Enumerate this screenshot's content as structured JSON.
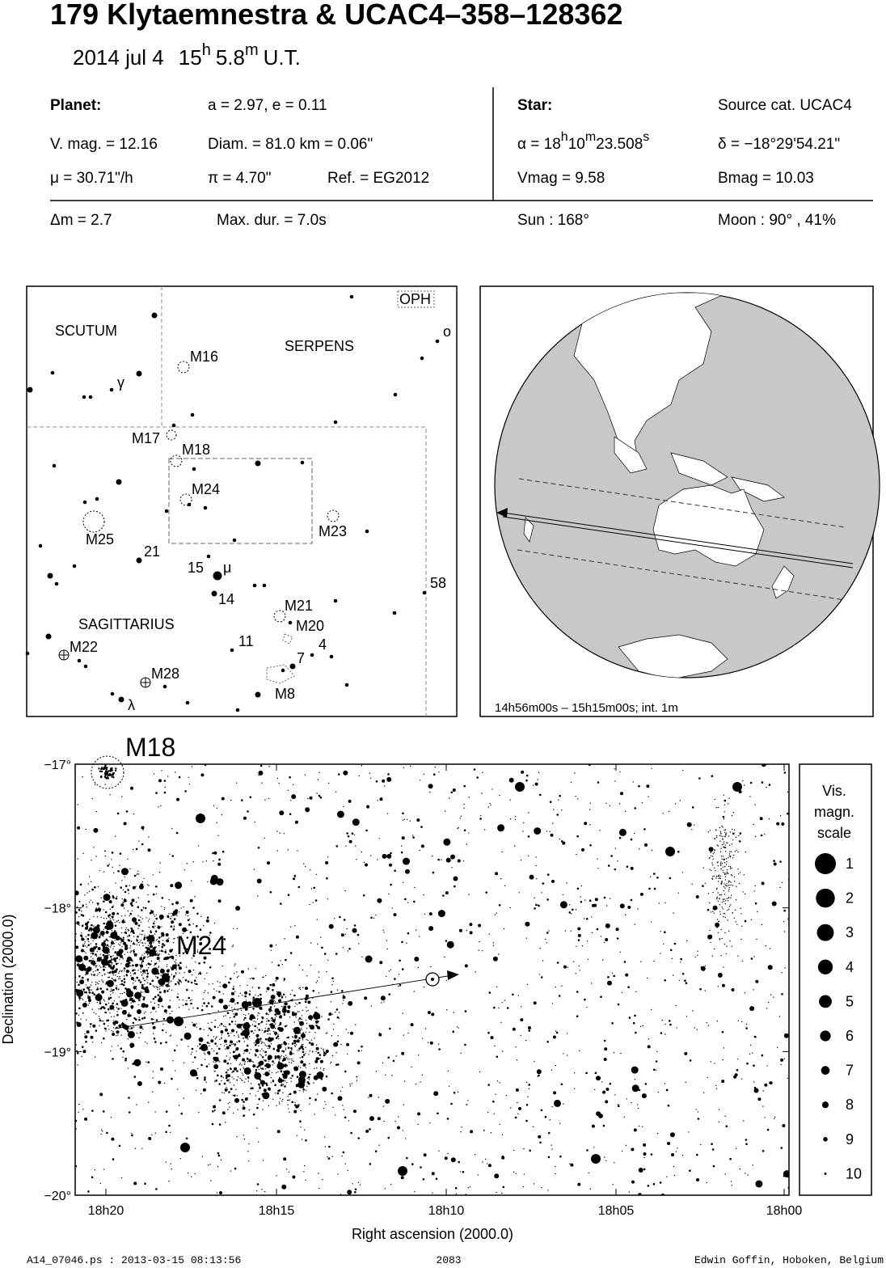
{
  "header": {
    "title": "179 Klytaemnestra  &  UCAC4–358–128362",
    "date": "2014 jul  4",
    "hour": "15",
    "hour_unit": "h",
    "minute": "5.8",
    "minute_unit": "m",
    "time_scale": "U.T."
  },
  "info": {
    "planet_label": "Planet:",
    "orbit": "a = 2.97, e = 0.11",
    "vmag": "V. mag. = 12.16",
    "diam": "Diam. = 81.0 km = 0.06\"",
    "mu": "μ =  30.71\"/h",
    "parallax": "π =  4.70\"",
    "ref": "Ref. = EG2012",
    "star_label": "Star:",
    "source": "Source cat.  UCAC4",
    "ra": {
      "prefix": "α = 18",
      "h": "h",
      "min": "10",
      "m": "m",
      "sec": "23.508",
      "s": "s"
    },
    "dec": "δ = −18°29'54.21\"",
    "star_vmag": "Vmag =  9.58",
    "bmag": "Bmag = 10.03",
    "delta_m": "Δm = 2.7",
    "max_dur": "Max. dur. = 7.0s",
    "sun": "Sun : 168°",
    "moon": "Moon :  90° , 41%"
  },
  "finder": {
    "labels": [
      "SCUTUM",
      "SERPENS",
      "OPH",
      "ο",
      "M16",
      "γ",
      "M17",
      "M18",
      "M24",
      "M23",
      "M25",
      "21",
      "15",
      "μ",
      "14",
      "58",
      "M21",
      "M20",
      "SAGITTARIUS",
      "M22",
      "11",
      "4",
      "7",
      "M28",
      "M8",
      "λ"
    ]
  },
  "globe": {
    "caption": "14h56m00s – 15h15m00s; int.  1m"
  },
  "field": {
    "labels": [
      "M18",
      "M24"
    ],
    "x_ticks": [
      "18h20",
      "18h15",
      "18h10",
      "18h05",
      "18h00"
    ],
    "y_ticks": [
      "−17°",
      "−18°",
      "−19°",
      "−20°"
    ],
    "x_label": "Right ascension (2000.0)",
    "y_label": "Declination (2000.0)",
    "legend": {
      "title": [
        "Vis.",
        "magn.",
        "scale"
      ],
      "magnitudes": [
        "1",
        "2",
        "3",
        "4",
        "5",
        "6",
        "7",
        "8",
        "9",
        "10"
      ]
    }
  },
  "footer": {
    "file": "A14_07046.ps : 2013-03-15 08:13:56",
    "page": "2083",
    "author": "Edwin Goffin, Hoboken, Belgium"
  }
}
